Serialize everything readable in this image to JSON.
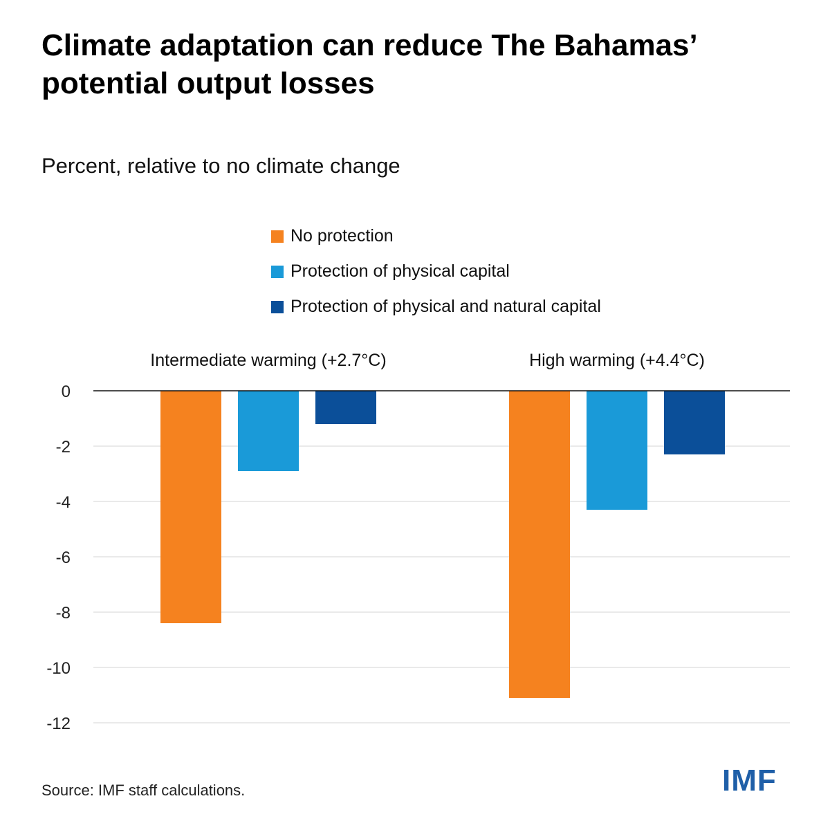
{
  "title": "Climate adaptation can reduce The Bahamas’ potential output losses",
  "subtitle": "Percent, relative to no climate change",
  "source": "Source: IMF staff calculations.",
  "logo_text": "IMF",
  "colors": {
    "no_protection": "#f5821f",
    "physical": "#1a9ad8",
    "physical_natural": "#0b4f99",
    "brand": "#1f5fa8"
  },
  "chart_data": {
    "type": "bar",
    "title": "Climate adaptation can reduce The Bahamas’ potential output losses",
    "ylabel": "Percent, relative to no climate change",
    "categories": [
      "Intermediate warming (+2.7°C)",
      "High warming (+4.4°C)"
    ],
    "series": [
      {
        "name": "No protection",
        "color": "#f5821f",
        "values": [
          -8.4,
          -11.1
        ]
      },
      {
        "name": "Protection of physical capital",
        "color": "#1a9ad8",
        "values": [
          -2.9,
          -4.3
        ]
      },
      {
        "name": "Protection of physical and natural capital",
        "color": "#0b4f99",
        "values": [
          -1.2,
          -2.3
        ]
      }
    ],
    "ylim": [
      -12,
      0
    ],
    "yticks": [
      0,
      -2,
      -4,
      -6,
      -8,
      -10,
      -12
    ],
    "grid": true,
    "legend": "top-center"
  }
}
